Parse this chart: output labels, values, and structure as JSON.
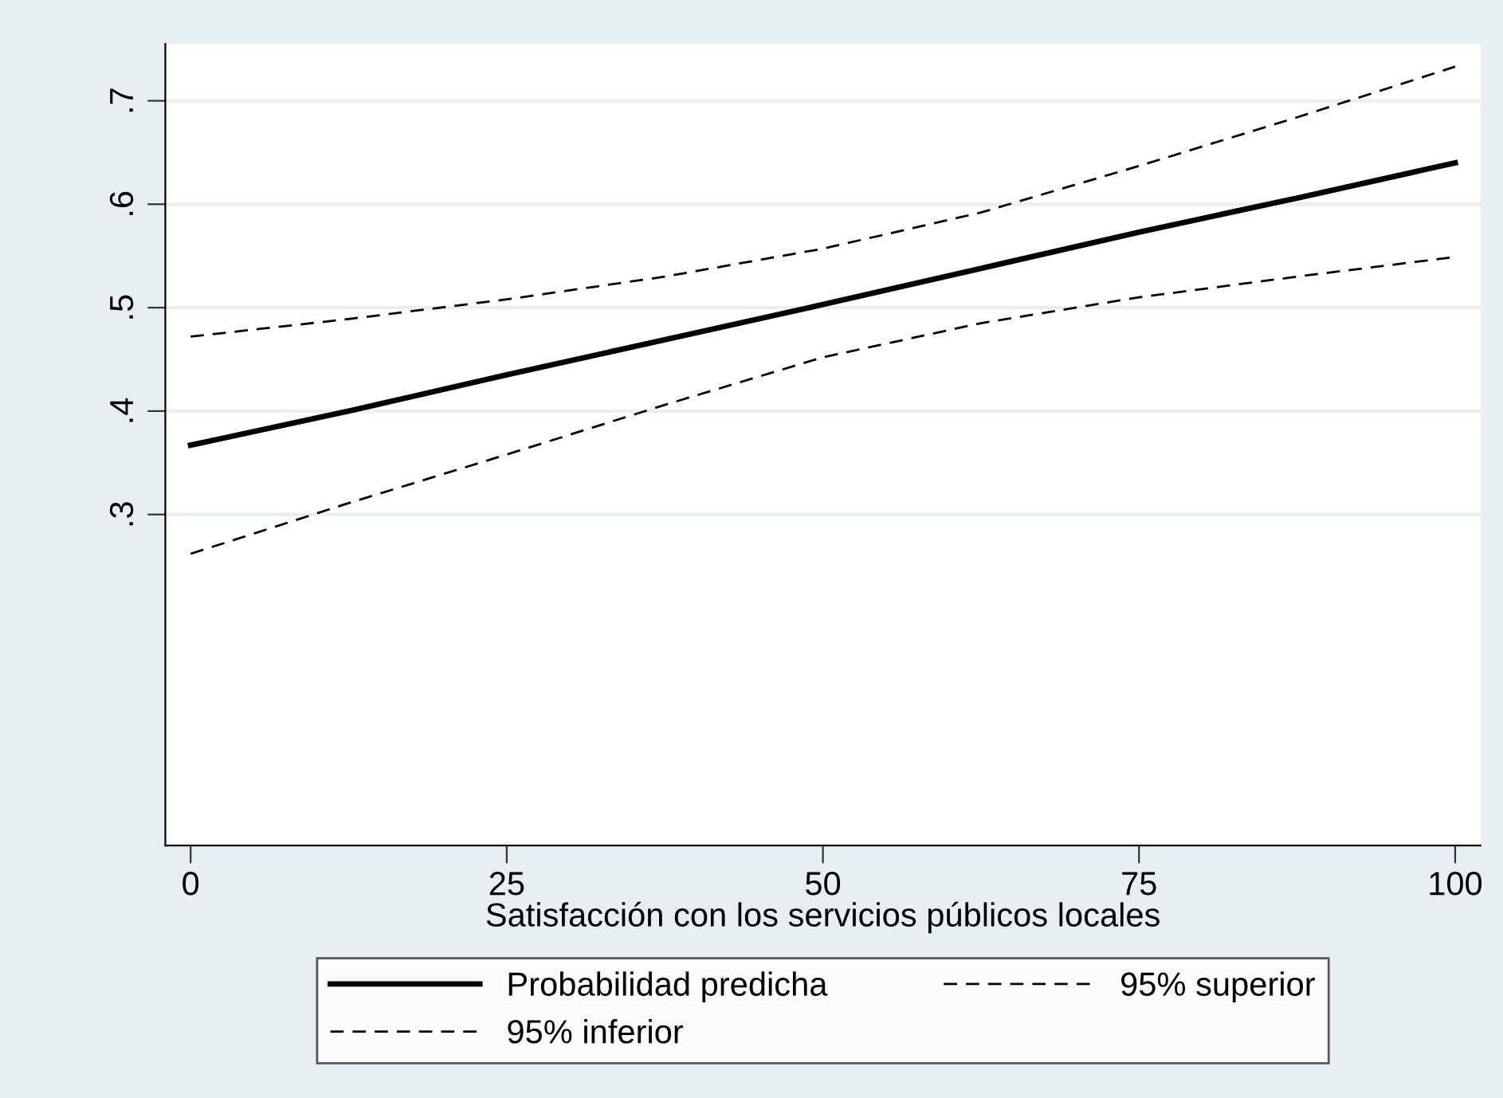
{
  "chart_data": {
    "type": "line",
    "xlabel": "Satisfacción con los servicios públicos locales",
    "x": [
      0,
      12.5,
      25,
      37.5,
      50,
      62.5,
      75,
      87.5,
      100
    ],
    "series": [
      {
        "name": "Probabilidad predicha",
        "color": "#000000",
        "line_style": "solid",
        "values": [
          0.367,
          0.4,
          0.435,
          0.469,
          0.503,
          0.538,
          0.573,
          0.606,
          0.64
        ]
      },
      {
        "name": "95% superior",
        "color": "#000000",
        "line_style": "dashed",
        "values": [
          0.472,
          0.489,
          0.508,
          0.53,
          0.557,
          0.592,
          0.637,
          0.684,
          0.733
        ]
      },
      {
        "name": "95% inferior",
        "color": "#000000",
        "line_style": "dashed",
        "values": [
          0.262,
          0.311,
          0.358,
          0.406,
          0.452,
          0.485,
          0.51,
          0.53,
          0.549
        ]
      }
    ],
    "xlim": [
      -2,
      102
    ],
    "xticks": [
      0,
      25,
      50,
      75,
      100
    ],
    "ylim": [
      -0.02,
      0.755
    ],
    "yticks": [
      {
        "value": 0.3,
        "label": ".3"
      },
      {
        "value": 0.4,
        "label": ".4"
      },
      {
        "value": 0.5,
        "label": ".5"
      },
      {
        "value": 0.6,
        "label": ".6"
      },
      {
        "value": 0.7,
        "label": ".7"
      }
    ],
    "grid": "y",
    "legend": "bottom",
    "marker": "none"
  }
}
